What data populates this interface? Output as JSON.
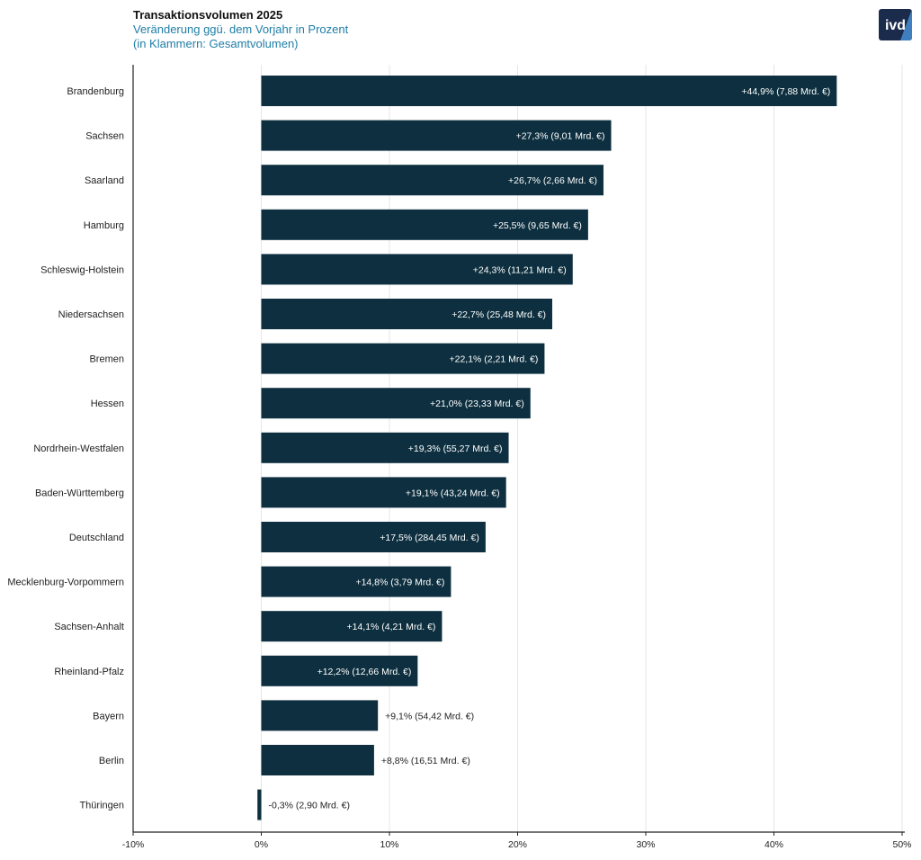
{
  "header": {
    "title": "Transaktionsvolumen 2025",
    "subtitle_line1": "Veränderung ggü. dem Vorjahr in Prozent",
    "subtitle_line2": "(in Klammern: Gesamtvolumen)"
  },
  "logo": {
    "text": "ivd",
    "icon": "ivd-logo",
    "colors": {
      "background": "#1b2b4b",
      "accent": "#3f7fbf",
      "text": "#ffffff"
    }
  },
  "colors": {
    "bar": "#0d2f3f",
    "label_inside": "#ffffff",
    "label_outside": "#222222",
    "grid": "#e6e6e6",
    "axis": "#222222",
    "title": "#111111",
    "subtitle": "#1f7ea7"
  },
  "chart_data": {
    "type": "bar",
    "orientation": "horizontal",
    "title": "Transaktionsvolumen 2025",
    "subtitle": "Veränderung ggü. dem Vorjahr in Prozent (in Klammern: Gesamtvolumen)",
    "xlabel": "",
    "ylabel": "",
    "xlim": [
      -10,
      50
    ],
    "xticks": [
      "-10%",
      "0%",
      "10%",
      "20%",
      "30%",
      "40%",
      "50%"
    ],
    "xtick_values": [
      -10,
      0,
      10,
      20,
      30,
      40,
      50
    ],
    "grid": "vertical",
    "categories": [
      "Brandenburg",
      "Sachsen",
      "Saarland",
      "Hamburg",
      "Schleswig-Holstein",
      "Niedersachsen",
      "Bremen",
      "Hessen",
      "Nordrhein-Westfalen",
      "Baden-Württemberg",
      "Deutschland",
      "Mecklenburg-Vorpommern",
      "Sachsen-Anhalt",
      "Rheinland-Pfalz",
      "Bayern",
      "Berlin",
      "Thüringen"
    ],
    "values": [
      44.9,
      27.3,
      26.7,
      25.5,
      24.3,
      22.7,
      22.1,
      21.0,
      19.3,
      19.1,
      17.5,
      14.8,
      14.1,
      12.2,
      9.1,
      8.8,
      -0.3
    ],
    "data_labels": [
      "+44,9% (7,88 Mrd. €)",
      "+27,3% (9,01 Mrd. €)",
      "+26,7% (2,66 Mrd. €)",
      "+25,5% (9,65 Mrd. €)",
      "+24,3% (11,21 Mrd. €)",
      "+22,7% (25,48 Mrd. €)",
      "+22,1% (2,21 Mrd. €)",
      "+21,0% (23,33 Mrd. €)",
      "+19,3% (55,27 Mrd. €)",
      "+19,1% (43,24 Mrd. €)",
      "+17,5% (284,45 Mrd. €)",
      "+14,8% (3,79 Mrd. €)",
      "+14,1% (4,21 Mrd. €)",
      "+12,2% (12,66 Mrd. €)",
      "+9,1% (54,42 Mrd. €)",
      "+8,8% (16,51 Mrd. €)",
      "-0,3% (2,90 Mrd. €)"
    ],
    "label_position": [
      "inside",
      "inside",
      "inside",
      "inside",
      "inside",
      "inside",
      "inside",
      "inside",
      "inside",
      "inside",
      "inside",
      "inside",
      "inside",
      "inside",
      "outside",
      "outside",
      "outside"
    ]
  }
}
